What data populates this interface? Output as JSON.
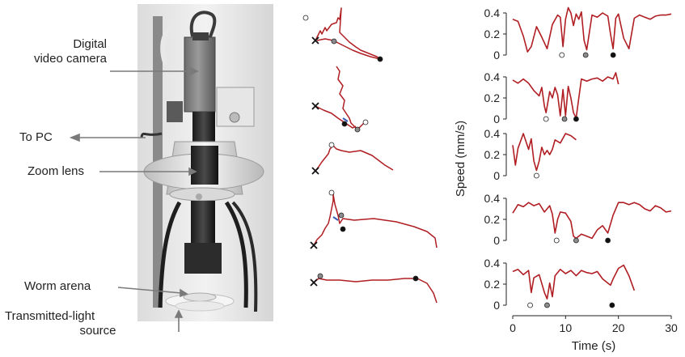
{
  "labels": {
    "camera": [
      "Digital",
      "video camera"
    ],
    "to_pc": "To PC",
    "zoom_lens": "Zoom lens",
    "worm_arena": "Worm arena",
    "light_source": [
      "Transmitted-light",
      "source"
    ]
  },
  "colors": {
    "trace": "#b01e23",
    "marker_open": "#ffffff",
    "marker_grey": "#8c8c8c",
    "marker_black": "#111111",
    "blue_segment": "#3a5bb8"
  },
  "chart_data": {
    "type": "line",
    "xlabel": "Time (s)",
    "ylabel": "Speed (mm/s)",
    "xlim": [
      0,
      30
    ],
    "ylim": [
      0,
      0.4
    ],
    "xticks": [
      0,
      10,
      20,
      30
    ],
    "yticks": [
      0,
      0.2,
      0.4
    ],
    "panels": [
      {
        "x": [
          0,
          1,
          2,
          2.8,
          3.5,
          4.5,
          5.5,
          6.5,
          7.5,
          8.5,
          9,
          9.5,
          10,
          10.5,
          11,
          11.5,
          12,
          12.5,
          13,
          13.5,
          14,
          15,
          16,
          17,
          18,
          18.5,
          19,
          19.5,
          20,
          21,
          22,
          23,
          24,
          25,
          26,
          27,
          28,
          29,
          30
        ],
        "y": [
          0.34,
          0.32,
          0.18,
          0.03,
          0.08,
          0.27,
          0.17,
          0.06,
          0.29,
          0.38,
          0.36,
          0.08,
          0.34,
          0.45,
          0.4,
          0.28,
          0.39,
          0.34,
          0.41,
          0.14,
          0.05,
          0.38,
          0.36,
          0.4,
          0.37,
          0.2,
          0.06,
          0.35,
          0.39,
          0.16,
          0.06,
          0.35,
          0.38,
          0.36,
          0.34,
          0.37,
          0.38,
          0.38,
          0.39
        ],
        "markers": {
          "open": 9.3,
          "grey": 13.8,
          "black": 19.0
        }
      },
      {
        "x": [
          0,
          1,
          2,
          3,
          4,
          5,
          5.5,
          6,
          6.3,
          7,
          7.5,
          8,
          8.5,
          9,
          9.5,
          10,
          10.5,
          11,
          11.5,
          12,
          12.5,
          13,
          14,
          15,
          16,
          17,
          18,
          19,
          19.5,
          20
        ],
        "y": [
          0.37,
          0.34,
          0.38,
          0.34,
          0.27,
          0.22,
          0.3,
          0.12,
          0.06,
          0.26,
          0.2,
          0.3,
          0.23,
          0.03,
          0.28,
          0.03,
          0.31,
          0.2,
          0.06,
          0.01,
          0.2,
          0.38,
          0.36,
          0.38,
          0.39,
          0.36,
          0.4,
          0.38,
          0.44,
          0.33
        ],
        "markers": {
          "open": 6.3,
          "grey": 9.8,
          "black": 12.0
        }
      },
      {
        "x": [
          0,
          0.5,
          1,
          2,
          3,
          3.5,
          4,
          4.5,
          5,
          5.5,
          6,
          6.5,
          7,
          7.5,
          8,
          9,
          10,
          11,
          12
        ],
        "y": [
          0.29,
          0.1,
          0.26,
          0.4,
          0.25,
          0.35,
          0.14,
          0.05,
          0.14,
          0.27,
          0.2,
          0.24,
          0.2,
          0.25,
          0.34,
          0.31,
          0.4,
          0.38,
          0.34
        ],
        "markers": {
          "open": 4.5
        }
      },
      {
        "x": [
          0,
          1,
          2,
          3,
          4,
          5,
          6,
          7,
          7.5,
          8,
          8.5,
          9,
          10,
          11,
          11.5,
          12,
          13,
          14,
          15,
          16,
          17,
          18,
          19,
          20,
          21,
          22,
          23,
          24,
          25,
          26,
          27,
          28,
          29,
          30
        ],
        "y": [
          0.26,
          0.34,
          0.32,
          0.36,
          0.33,
          0.35,
          0.27,
          0.33,
          0.25,
          0.07,
          0.2,
          0.27,
          0.26,
          0.18,
          0.04,
          0.02,
          0.06,
          0.04,
          0.02,
          0.1,
          0.14,
          0.07,
          0.24,
          0.36,
          0.36,
          0.34,
          0.36,
          0.34,
          0.3,
          0.28,
          0.33,
          0.31,
          0.27,
          0.28
        ],
        "markers": {
          "open": 8.3,
          "grey": 12.0,
          "black": 18.0
        }
      },
      {
        "x": [
          0,
          1,
          2,
          3,
          3.5,
          4,
          5,
          6,
          6.5,
          7,
          7.5,
          8,
          9,
          10,
          11,
          12,
          13,
          14,
          15,
          16,
          17,
          18,
          18.5,
          19,
          20,
          21,
          22,
          23
        ],
        "y": [
          0.32,
          0.34,
          0.29,
          0.33,
          0.12,
          0.26,
          0.29,
          0.12,
          0.06,
          0.21,
          0.08,
          0.28,
          0.34,
          0.3,
          0.33,
          0.28,
          0.33,
          0.31,
          0.3,
          0.32,
          0.25,
          0.21,
          0.19,
          0.25,
          0.35,
          0.38,
          0.28,
          0.14
        ],
        "markers": {
          "open": 3.3,
          "grey": 6.5,
          "black": 18.8
        }
      }
    ]
  }
}
